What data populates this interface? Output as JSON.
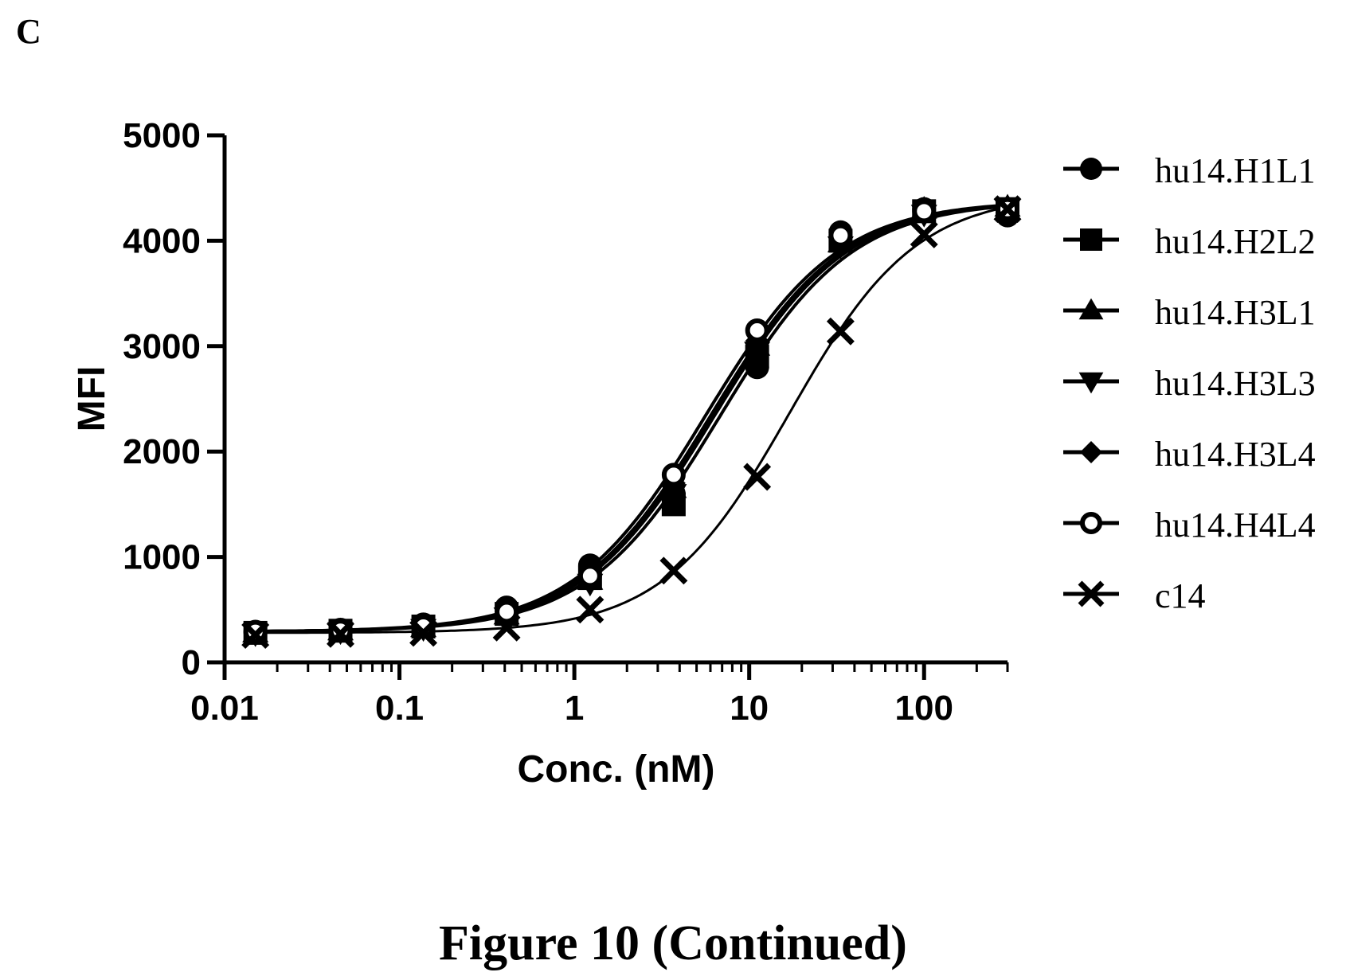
{
  "panel_label": "C",
  "caption": "Figure 10 (Continued)",
  "chart_data": {
    "type": "scatter",
    "x_scale": "log",
    "xlabel": "Conc. (nM)",
    "ylabel": "MFI",
    "xlim": [
      0.01,
      300
    ],
    "ylim": [
      0,
      5000
    ],
    "x_ticks": [
      0.01,
      0.1,
      1,
      10,
      100
    ],
    "x_tick_labels": [
      "0.01",
      "0.1",
      "1",
      "10",
      "100"
    ],
    "y_ticks": [
      0,
      1000,
      2000,
      3000,
      4000,
      5000
    ],
    "y_tick_labels": [
      "0",
      "1000",
      "2000",
      "3000",
      "4000",
      "5000"
    ],
    "legend_position": "right",
    "x": [
      0.015,
      0.046,
      0.137,
      0.41,
      1.23,
      3.7,
      11.1,
      33.3,
      100,
      300
    ],
    "series": [
      {
        "name": "hu14.H1L1",
        "marker": "circle",
        "values": [
          290,
          310,
          360,
          520,
          920,
          1600,
          2800,
          4080,
          4300,
          4240
        ],
        "fit": {
          "bottom": 290,
          "top": 4380,
          "ec50": 6.8,
          "hill": 1.15
        }
      },
      {
        "name": "hu14.H2L2",
        "marker": "square",
        "values": [
          280,
          300,
          340,
          460,
          800,
          1500,
          2900,
          4000,
          4280,
          4300
        ],
        "fit": {
          "bottom": 290,
          "top": 4380,
          "ec50": 6.2,
          "hill": 1.15
        }
      },
      {
        "name": "hu14.H3L1",
        "marker": "triangle-up",
        "values": [
          280,
          300,
          330,
          450,
          780,
          1650,
          3000,
          3980,
          4300,
          4320
        ],
        "fit": {
          "bottom": 290,
          "top": 4380,
          "ec50": 6.0,
          "hill": 1.15
        }
      },
      {
        "name": "hu14.H3L3",
        "marker": "triangle-down",
        "values": [
          270,
          290,
          320,
          430,
          750,
          1600,
          2950,
          3950,
          4250,
          4300
        ],
        "fit": {
          "bottom": 290,
          "top": 4380,
          "ec50": 6.3,
          "hill": 1.15
        }
      },
      {
        "name": "hu14.H3L4",
        "marker": "diamond",
        "values": [
          280,
          300,
          330,
          450,
          800,
          1700,
          3050,
          4000,
          4300,
          4320
        ],
        "fit": {
          "bottom": 290,
          "top": 4380,
          "ec50": 6.0,
          "hill": 1.15
        }
      },
      {
        "name": "hu14.H4L4",
        "marker": "circle-open",
        "values": [
          290,
          300,
          340,
          480,
          820,
          1780,
          3150,
          4050,
          4280,
          4300
        ],
        "fit": {
          "bottom": 290,
          "top": 4380,
          "ec50": 5.6,
          "hill": 1.15
        }
      },
      {
        "name": "c14",
        "marker": "x",
        "values": [
          260,
          270,
          280,
          330,
          500,
          870,
          1760,
          3140,
          4060,
          4300
        ],
        "fit": {
          "bottom": 280,
          "top": 4450,
          "ec50": 17,
          "hill": 1.2
        }
      }
    ]
  }
}
